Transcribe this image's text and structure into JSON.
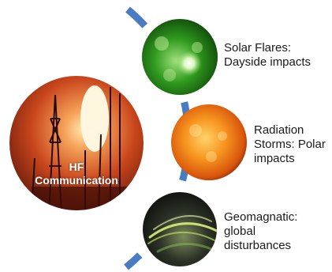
{
  "center": {
    "line1": "HF",
    "line2": "Communication"
  },
  "items": [
    {
      "id": "solar-flares",
      "line1": "Solar Flares:",
      "line2": "Dayside impacts"
    },
    {
      "id": "radiation-storms",
      "line1": "Radiation",
      "line2": "Storms: Polar",
      "line3": "impacts"
    },
    {
      "id": "geomagnetic",
      "line1": "Geomagnatic:",
      "line2": "global",
      "line3": "disturbances"
    }
  ],
  "colors": {
    "arc": "#4a7cc4",
    "text": "#1a1a1a",
    "center_text": "#ffffff"
  }
}
